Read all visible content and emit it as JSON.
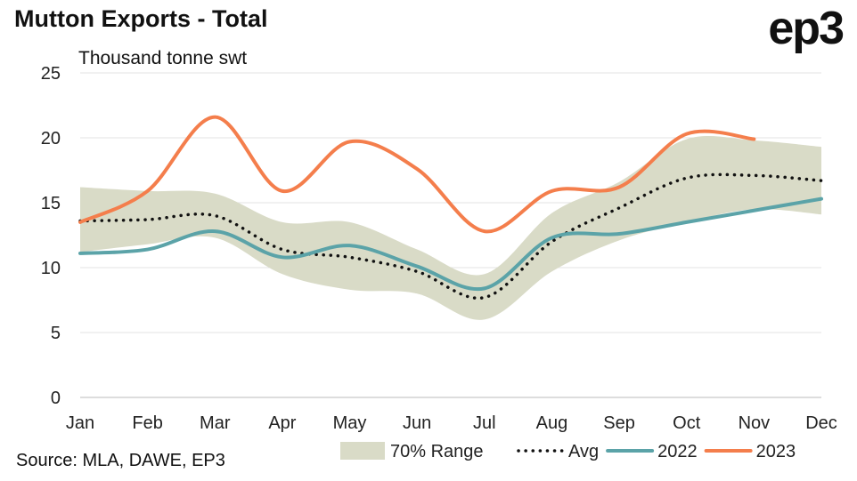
{
  "title": "Mutton Exports - Total",
  "logo": "ep3",
  "source": "Source: MLA, DAWE, EP3",
  "chart_data": {
    "type": "line",
    "title": "Mutton Exports - Total",
    "ylabel": "Thousand tonne swt",
    "xlabel": "",
    "categories": [
      "Jan",
      "Feb",
      "Mar",
      "Apr",
      "May",
      "Jun",
      "Jul",
      "Aug",
      "Sep",
      "Oct",
      "Nov",
      "Dec"
    ],
    "ylim": [
      0,
      25
    ],
    "yticks": [
      0,
      5,
      10,
      15,
      20,
      25
    ],
    "grid": true,
    "legend_position": "bottom-right",
    "range": {
      "name": "70% Range",
      "color": "#D9DBC7",
      "upper": [
        16.2,
        15.9,
        15.7,
        13.5,
        13.5,
        11.4,
        9.5,
        14.2,
        16.6,
        19.9,
        19.8,
        19.3
      ],
      "lower": [
        11.2,
        11.8,
        12.3,
        9.5,
        8.3,
        8.0,
        6.0,
        9.7,
        12.1,
        13.5,
        14.5,
        14.1
      ]
    },
    "series": [
      {
        "name": "Avg",
        "color": "#111111",
        "style": "dotted",
        "values": [
          13.6,
          13.7,
          14.0,
          11.4,
          10.8,
          9.7,
          7.7,
          12.0,
          14.6,
          16.9,
          17.1,
          16.7
        ]
      },
      {
        "name": "2022",
        "color": "#5BA3A8",
        "style": "solid",
        "values": [
          11.1,
          11.4,
          12.8,
          10.8,
          11.7,
          10.1,
          8.4,
          12.3,
          12.6,
          13.5,
          14.4,
          15.3
        ]
      },
      {
        "name": "2023",
        "color": "#F47E4C",
        "style": "solid",
        "values": [
          13.5,
          15.9,
          21.6,
          15.9,
          19.7,
          17.6,
          12.8,
          15.9,
          16.2,
          20.3,
          19.9,
          null
        ]
      }
    ]
  }
}
